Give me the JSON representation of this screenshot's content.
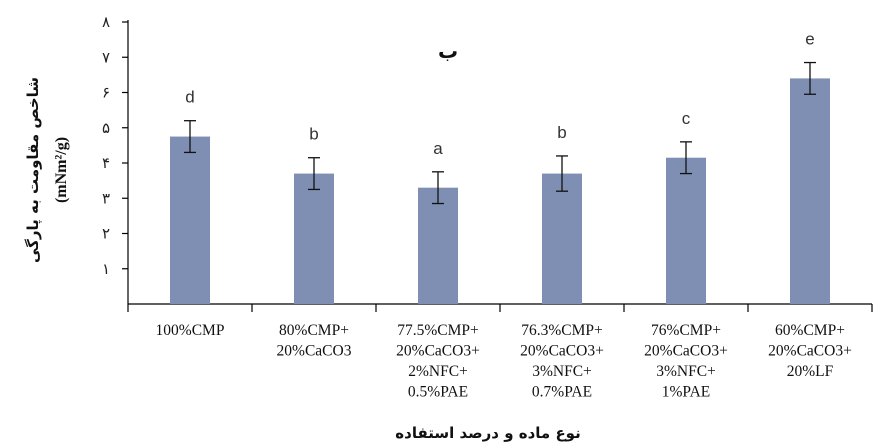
{
  "chart_data": {
    "type": "bar",
    "title": "ب",
    "xlabel": "نوع ماده و درصد استفاده",
    "ylabel": "شاخص مقاومت به پارگی",
    "ylabel_unit": "(mNm²/g)",
    "ylim": [
      0,
      8
    ],
    "yticks": [
      {
        "value": 1,
        "label": "۱"
      },
      {
        "value": 2,
        "label": "۲"
      },
      {
        "value": 3,
        "label": "۳"
      },
      {
        "value": 4,
        "label": "۴"
      },
      {
        "value": 5,
        "label": "۵"
      },
      {
        "value": 6,
        "label": "۶"
      },
      {
        "value": 7,
        "label": "۷"
      },
      {
        "value": 8,
        "label": "۸"
      }
    ],
    "categories": [
      [
        "100%CMP"
      ],
      [
        "80%CMP+",
        "20%CaCO3"
      ],
      [
        "77.5%CMP+",
        "20%CaCO3+",
        "2%NFC+",
        "0.5%PAE"
      ],
      [
        "76.3%CMP+",
        "20%CaCO3+",
        "3%NFC+",
        "0.7%PAE"
      ],
      [
        "76%CMP+",
        "20%CaCO3+",
        "3%NFC+",
        "1%PAE"
      ],
      [
        "60%CMP+",
        "20%CaCO3+",
        "20%LF"
      ]
    ],
    "values": [
      4.75,
      3.7,
      3.3,
      3.7,
      4.15,
      6.4
    ],
    "errors": [
      0.45,
      0.45,
      0.45,
      0.5,
      0.45,
      0.45
    ],
    "significance": [
      "d",
      "b",
      "a",
      "b",
      "c",
      "e"
    ],
    "bar_color": "#7f8fb3",
    "grid": false
  }
}
